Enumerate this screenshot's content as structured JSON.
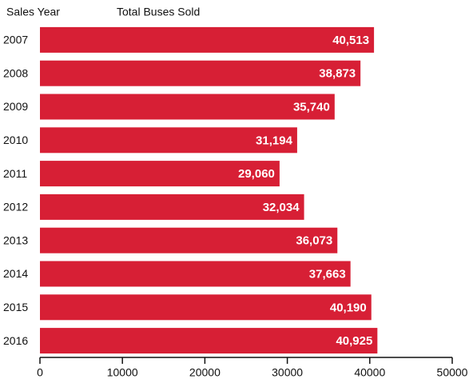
{
  "chart_data": {
    "type": "bar",
    "orientation": "horizontal",
    "y_label": "Sales Year",
    "x_label": "Total Buses Sold",
    "categories": [
      "2007",
      "2008",
      "2009",
      "2010",
      "2011",
      "2012",
      "2013",
      "2014",
      "2015",
      "2016"
    ],
    "values": [
      40513,
      38873,
      35740,
      31194,
      29060,
      32034,
      36073,
      37663,
      40190,
      40925
    ],
    "value_labels": [
      "40,513",
      "38,873",
      "35,740",
      "31,194",
      "29,060",
      "32,034",
      "36,073",
      "37,663",
      "40,190",
      "40,925"
    ],
    "color": "#d71f35",
    "xlim": [
      0,
      50000
    ],
    "xticks": [
      0,
      10000,
      20000,
      30000,
      40000,
      50000
    ]
  }
}
